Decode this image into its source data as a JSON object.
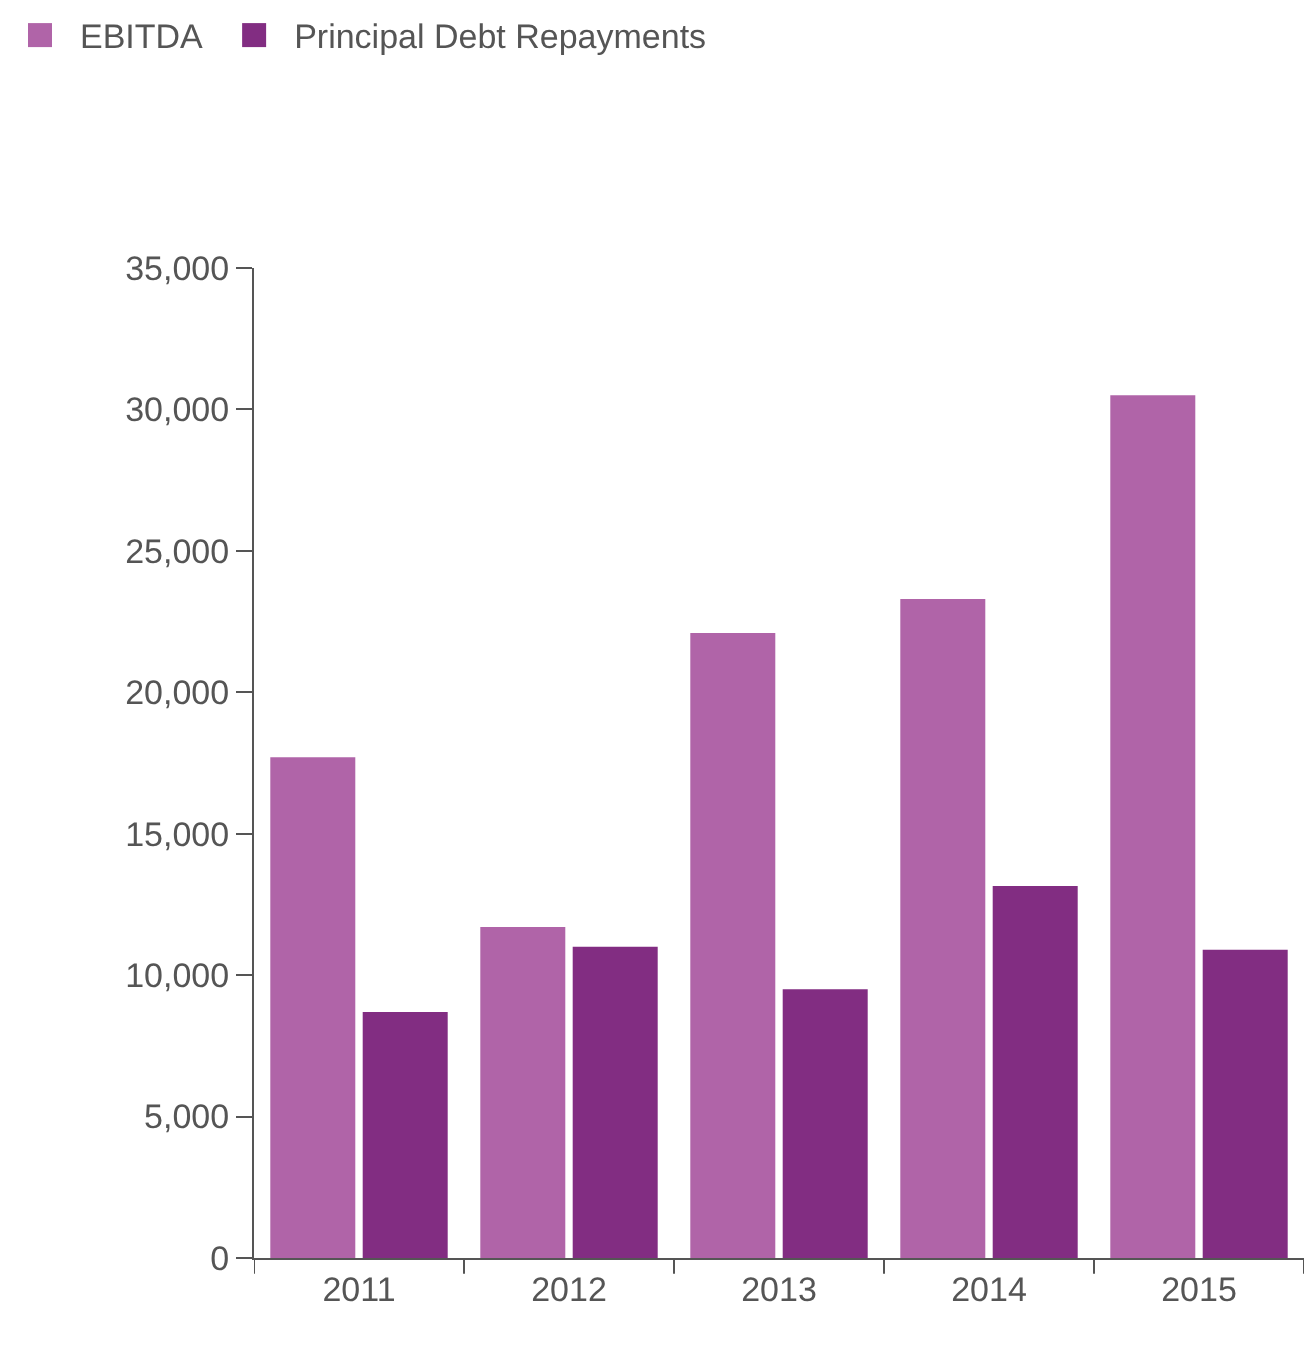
{
  "chart_data": {
    "type": "bar",
    "categories": [
      "2011",
      "2012",
      "2013",
      "2014",
      "2015"
    ],
    "series": [
      {
        "name": "EBITDA",
        "color": "#b064a8",
        "values": [
          17700,
          11700,
          22100,
          23300,
          30500
        ]
      },
      {
        "name": "Principal Debt Repayments",
        "color": "#822d82",
        "values": [
          8700,
          11000,
          9500,
          13150,
          10900
        ]
      }
    ],
    "ylim": [
      0,
      35000
    ],
    "yticks": [
      {
        "value": 0,
        "label": "0"
      },
      {
        "value": 5000,
        "label": "5,000"
      },
      {
        "value": 10000,
        "label": "10,000"
      },
      {
        "value": 15000,
        "label": "15,000"
      },
      {
        "value": 20000,
        "label": "20,000"
      },
      {
        "value": 25000,
        "label": "25,000"
      },
      {
        "value": 30000,
        "label": "30,000"
      },
      {
        "value": 35000,
        "label": "35,000"
      }
    ],
    "legend": "top left"
  }
}
